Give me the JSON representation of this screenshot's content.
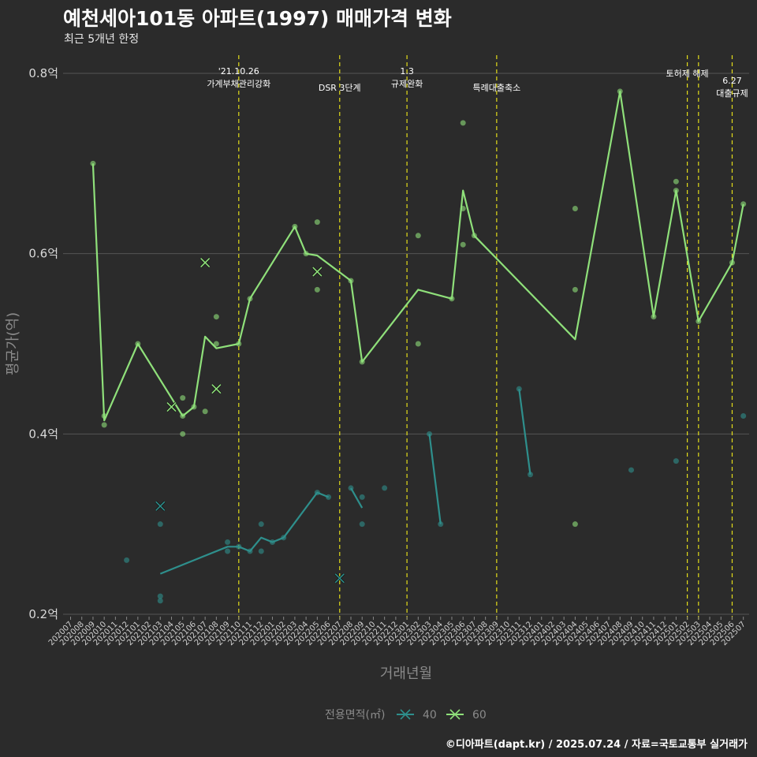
{
  "header": {
    "title": "예천세아101동 아파트(1997) 매매가격 변화",
    "subtitle": "최근 5개년 한정"
  },
  "caption": "©디아파트(dapt.kr) / 2025.07.24 / 자료=국토교통부 실거래가",
  "colors": {
    "s40": "#2e8f8c",
    "s60": "#8fe07a",
    "event": "#e3dd1a",
    "grid": "#555555"
  },
  "chart_data": {
    "type": "line",
    "xlabel": "거래년월",
    "ylabel": "평균가(억)",
    "ylim": [
      0.19,
      0.82
    ],
    "y_ticks": [
      {
        "value": 0.2,
        "label": "0.2억"
      },
      {
        "value": 0.4,
        "label": "0.4억"
      },
      {
        "value": 0.6,
        "label": "0.6억"
      },
      {
        "value": 0.8,
        "label": "0.8억"
      }
    ],
    "x_categories": [
      "202007",
      "202008",
      "202009",
      "202010",
      "202011",
      "202012",
      "202101",
      "202102",
      "202103",
      "202104",
      "202105",
      "202106",
      "202107",
      "202108",
      "202109",
      "202110",
      "202111",
      "202112",
      "202201",
      "202202",
      "202203",
      "202204",
      "202205",
      "202206",
      "202207",
      "202208",
      "202209",
      "202210",
      "202211",
      "202212",
      "202301",
      "202302",
      "202303",
      "202304",
      "202305",
      "202306",
      "202307",
      "202308",
      "202309",
      "202310",
      "202311",
      "202312",
      "202401",
      "202402",
      "202403",
      "202404",
      "202405",
      "202406",
      "202407",
      "202408",
      "202409",
      "202410",
      "202411",
      "202412",
      "202501",
      "202502",
      "202503",
      "202504",
      "202505",
      "202506",
      "202507"
    ],
    "grid": true,
    "legend": {
      "title": "전용면적(㎡)",
      "position": "bottom",
      "items": [
        {
          "label": "40",
          "series": "40"
        },
        {
          "label": "60",
          "series": "60"
        }
      ]
    },
    "events": [
      {
        "x": "202110",
        "lines": [
          "'21.10.26",
          "가계부채관리강화"
        ]
      },
      {
        "x": "202207",
        "lines": [
          "DSR 3단계"
        ]
      },
      {
        "x": "202301",
        "lines": [
          "1.3",
          "규제완화"
        ]
      },
      {
        "x": "202309",
        "lines": [
          "특례대출축소"
        ]
      },
      {
        "x": "202502",
        "lines": [
          "토허제 해제"
        ]
      },
      {
        "x": "202503",
        "lines": []
      },
      {
        "x": "202506",
        "lines": [
          "6.27",
          "대출규제"
        ]
      }
    ],
    "series": [
      {
        "name": "40",
        "lines": [
          [
            [
              "202103",
              0.245
            ],
            [
              "202109",
              0.275
            ],
            [
              "202110",
              0.275
            ],
            [
              "202111",
              0.27
            ],
            [
              "202112",
              0.285
            ],
            [
              "202201",
              0.28
            ],
            [
              "202202",
              0.285
            ],
            [
              "202205",
              0.335
            ],
            [
              "202206",
              0.33
            ]
          ],
          [
            [
              "202208",
              0.34
            ],
            [
              "202209",
              0.318
            ]
          ],
          [
            [
              "202303",
              0.4
            ],
            [
              "202304",
              0.3
            ]
          ],
          [
            [
              "202311",
              0.45
            ],
            [
              "202312",
              0.355
            ]
          ]
        ],
        "points": [
          [
            "202103",
            0.3
          ],
          [
            "202103",
            0.22
          ],
          [
            "202103",
            0.215
          ],
          [
            "202012",
            0.26
          ],
          [
            "202109",
            0.28
          ],
          [
            "202109",
            0.27
          ],
          [
            "202110",
            0.275
          ],
          [
            "202111",
            0.27
          ],
          [
            "202112",
            0.3
          ],
          [
            "202112",
            0.27
          ],
          [
            "202201",
            0.28
          ],
          [
            "202202",
            0.285
          ],
          [
            "202205",
            0.335
          ],
          [
            "202206",
            0.33
          ],
          [
            "202208",
            0.34
          ],
          [
            "202209",
            0.33
          ],
          [
            "202209",
            0.3
          ],
          [
            "202211",
            0.34
          ],
          [
            "202303",
            0.4
          ],
          [
            "202304",
            0.3
          ],
          [
            "202311",
            0.45
          ],
          [
            "202312",
            0.355
          ],
          [
            "202409",
            0.36
          ],
          [
            "202501",
            0.37
          ],
          [
            "202507",
            0.42
          ]
        ],
        "crosses": [
          [
            "202103",
            0.32
          ],
          [
            "202207",
            0.24
          ]
        ]
      },
      {
        "name": "60",
        "lines": [
          [
            [
              "202009",
              0.7
            ],
            [
              "202010",
              0.415
            ],
            [
              "202101",
              0.5
            ],
            [
              "202105",
              0.42
            ],
            [
              "202106",
              0.43
            ],
            [
              "202107",
              0.508
            ],
            [
              "202108",
              0.495
            ],
            [
              "202110",
              0.5
            ],
            [
              "202111",
              0.55
            ],
            [
              "202203",
              0.63
            ],
            [
              "202204",
              0.6
            ],
            [
              "202205",
              0.598
            ],
            [
              "202208",
              0.57
            ],
            [
              "202209",
              0.48
            ],
            [
              "202302",
              0.56
            ],
            [
              "202305",
              0.55
            ],
            [
              "202306",
              0.67
            ],
            [
              "202307",
              0.62
            ],
            [
              "202404",
              0.505
            ],
            [
              "202408",
              0.78
            ],
            [
              "202411",
              0.53
            ],
            [
              "202501",
              0.67
            ],
            [
              "202503",
              0.525
            ],
            [
              "202506",
              0.59
            ],
            [
              "202507",
              0.655
            ]
          ]
        ],
        "points": [
          [
            "202009",
            0.7
          ],
          [
            "202010",
            0.41
          ],
          [
            "202010",
            0.42
          ],
          [
            "202101",
            0.5
          ],
          [
            "202105",
            0.44
          ],
          [
            "202105",
            0.42
          ],
          [
            "202105",
            0.4
          ],
          [
            "202106",
            0.43
          ],
          [
            "202107",
            0.425
          ],
          [
            "202108",
            0.53
          ],
          [
            "202108",
            0.5
          ],
          [
            "202110",
            0.5
          ],
          [
            "202111",
            0.55
          ],
          [
            "202203",
            0.63
          ],
          [
            "202204",
            0.6
          ],
          [
            "202205",
            0.635
          ],
          [
            "202205",
            0.56
          ],
          [
            "202208",
            0.57
          ],
          [
            "202209",
            0.48
          ],
          [
            "202302",
            0.62
          ],
          [
            "202302",
            0.5
          ],
          [
            "202305",
            0.55
          ],
          [
            "202306",
            0.745
          ],
          [
            "202306",
            0.65
          ],
          [
            "202306",
            0.61
          ],
          [
            "202307",
            0.62
          ],
          [
            "202404",
            0.65
          ],
          [
            "202404",
            0.56
          ],
          [
            "202404",
            0.3
          ],
          [
            "202408",
            0.78
          ],
          [
            "202411",
            0.53
          ],
          [
            "202501",
            0.68
          ],
          [
            "202501",
            0.67
          ],
          [
            "202503",
            0.525
          ],
          [
            "202506",
            0.59
          ],
          [
            "202507",
            0.655
          ]
        ],
        "crosses": [
          [
            "202104",
            0.43
          ],
          [
            "202107",
            0.59
          ],
          [
            "202108",
            0.45
          ],
          [
            "202205",
            0.58
          ]
        ]
      }
    ]
  }
}
